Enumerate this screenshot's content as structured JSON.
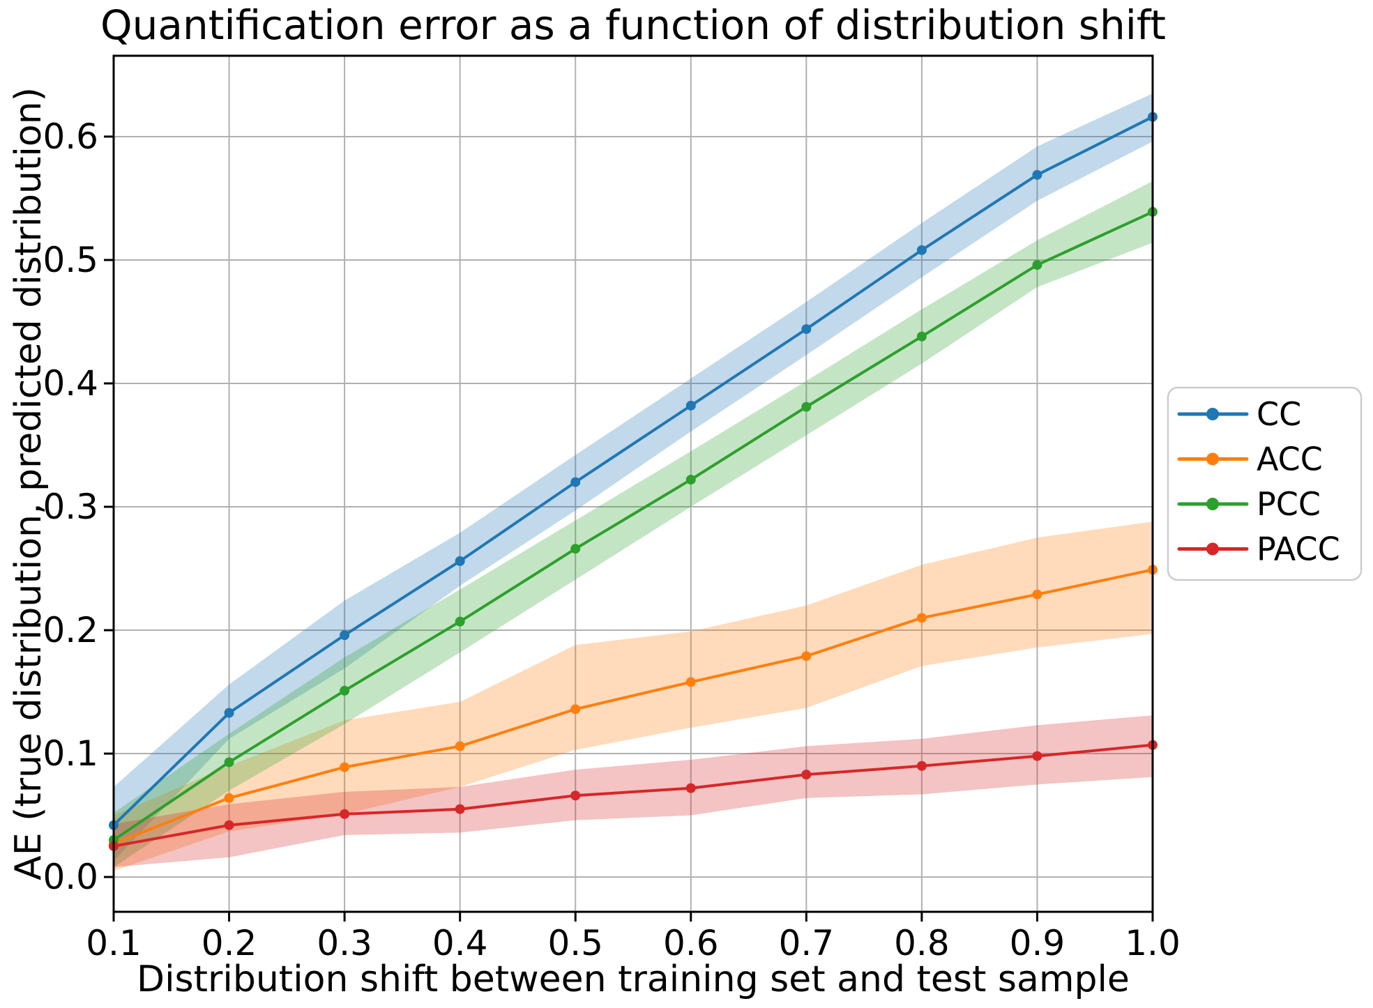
{
  "chart_data": {
    "type": "line",
    "title": "Quantification error as a function of distribution shift",
    "xlabel": "Distribution shift between training set and test sample",
    "ylabel": "AE (true distribution, predicted distribution)",
    "x": [
      0.1,
      0.2,
      0.3,
      0.4,
      0.5,
      0.6,
      0.7,
      0.8,
      0.9,
      1.0
    ],
    "x_tick_labels": [
      "0.1",
      "0.2",
      "0.3",
      "0.4",
      "0.5",
      "0.6",
      "0.7",
      "0.8",
      "0.9",
      "1.0"
    ],
    "y_ticks": [
      0.0,
      0.1,
      0.2,
      0.3,
      0.4,
      0.5,
      0.6
    ],
    "y_tick_labels": [
      "0.0",
      "0.1",
      "0.2",
      "0.3",
      "0.4",
      "0.5",
      "0.6"
    ],
    "xlim": [
      0.1,
      1.0
    ],
    "ylim": [
      -0.0282,
      0.6655
    ],
    "grid": true,
    "grid_color": "#b0b0b0",
    "spine_color": "#000000",
    "band_opacity": 0.28,
    "legend_position": "center-right-outside",
    "legend_border_color": "#cccccc",
    "series": [
      {
        "name": "CC",
        "color": "#1f77b4",
        "values": [
          0.042,
          0.133,
          0.196,
          0.256,
          0.32,
          0.382,
          0.444,
          0.508,
          0.569,
          0.616
        ],
        "band_low": [
          0.013,
          0.112,
          0.169,
          0.236,
          0.297,
          0.361,
          0.423,
          0.486,
          0.548,
          0.596
        ],
        "band_high": [
          0.073,
          0.156,
          0.224,
          0.279,
          0.342,
          0.404,
          0.466,
          0.53,
          0.592,
          0.635
        ]
      },
      {
        "name": "ACC",
        "color": "#ff7f0e",
        "values": [
          0.027,
          0.064,
          0.089,
          0.106,
          0.136,
          0.158,
          0.179,
          0.21,
          0.229,
          0.249
        ],
        "band_low": [
          0.005,
          0.037,
          0.051,
          0.073,
          0.103,
          0.121,
          0.137,
          0.171,
          0.186,
          0.197
        ],
        "band_high": [
          0.05,
          0.09,
          0.127,
          0.142,
          0.188,
          0.199,
          0.22,
          0.253,
          0.275,
          0.288
        ]
      },
      {
        "name": "PCC",
        "color": "#2ca02c",
        "values": [
          0.03,
          0.093,
          0.151,
          0.207,
          0.266,
          0.322,
          0.381,
          0.438,
          0.496,
          0.539
        ],
        "band_low": [
          0.008,
          0.07,
          0.124,
          0.182,
          0.241,
          0.3,
          0.358,
          0.416,
          0.478,
          0.514
        ],
        "band_high": [
          0.052,
          0.116,
          0.178,
          0.233,
          0.289,
          0.345,
          0.402,
          0.46,
          0.516,
          0.564
        ]
      },
      {
        "name": "PACC",
        "color": "#d62728",
        "values": [
          0.025,
          0.042,
          0.051,
          0.055,
          0.066,
          0.072,
          0.083,
          0.09,
          0.098,
          0.107
        ],
        "band_low": [
          0.008,
          0.016,
          0.034,
          0.036,
          0.046,
          0.05,
          0.064,
          0.067,
          0.075,
          0.081
        ],
        "band_high": [
          0.043,
          0.059,
          0.069,
          0.073,
          0.087,
          0.095,
          0.106,
          0.112,
          0.123,
          0.131
        ]
      }
    ]
  }
}
